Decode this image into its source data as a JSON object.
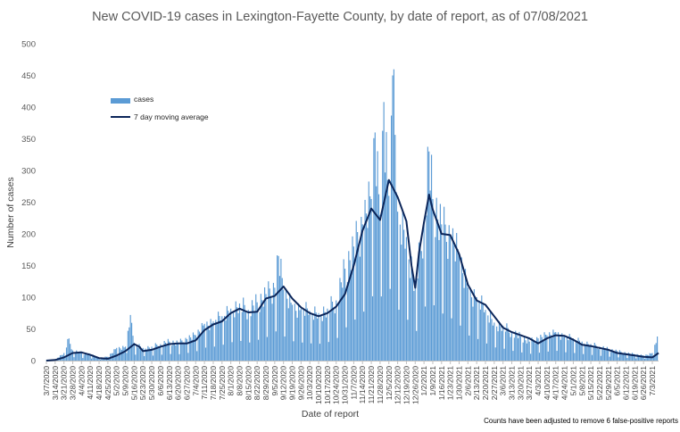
{
  "title": "New COVID-19 cases in Lexington-Fayette County, by date of report, as of 07/08/2021",
  "footnote": "Counts have been adjusted to remove 6 false-positive reports",
  "colors": {
    "bars": "#5B9BD5",
    "line": "#0B2559",
    "text": "#595959"
  },
  "chart_data": {
    "type": "bar",
    "title": "New COVID-19 cases in Lexington-Fayette County, by date of report, as of 07/08/2021",
    "xlabel": "Date of report",
    "ylabel": "Number of cases",
    "ylim": [
      0,
      500
    ],
    "yticks": [
      0,
      50,
      100,
      150,
      200,
      250,
      300,
      350,
      400,
      450,
      500
    ],
    "xlim": [
      "3/7/2020",
      "7/8/2021"
    ],
    "xticks": [
      "3/7/2020",
      "3/14/2020",
      "3/21/2020",
      "3/28/2020",
      "4/4/2020",
      "4/11/2020",
      "4/18/2020",
      "4/25/2020",
      "5/2/2020",
      "5/9/2020",
      "5/16/2020",
      "5/23/2020",
      "5/30/2020",
      "6/6/2020",
      "6/13/2020",
      "6/20/2020",
      "6/27/2020",
      "7/4/2020",
      "7/11/2020",
      "7/18/2020",
      "7/25/2020",
      "8/1/2020",
      "8/8/2020",
      "8/15/2020",
      "8/22/2020",
      "8/29/2020",
      "9/5/2020",
      "9/12/2020",
      "9/19/2020",
      "9/26/2020",
      "10/3/2020",
      "10/10/2020",
      "10/17/2020",
      "10/24/2020",
      "10/31/2020",
      "11/7/2020",
      "11/14/2020",
      "11/21/2020",
      "11/28/2020",
      "12/5/2020",
      "12/12/2020",
      "12/19/2020",
      "12/26/2020",
      "1/2/2021",
      "1/9/2021",
      "1/16/2021",
      "1/23/2021",
      "1/30/2021",
      "2/6/2021",
      "2/13/2021",
      "2/20/2021",
      "2/27/2021",
      "3/6/2021",
      "3/13/2021",
      "3/20/2021",
      "3/27/2021",
      "4/3/2021",
      "4/10/2021",
      "4/17/2021",
      "4/24/2021",
      "5/1/2021",
      "5/8/2021",
      "5/15/2021",
      "5/22/2021",
      "5/29/2021",
      "6/5/2021",
      "6/12/2021",
      "6/19/2021",
      "6/26/2021",
      "7/3/2021"
    ],
    "grid": false,
    "legend_position": "upper-left",
    "series": [
      {
        "name": "cases",
        "type": "bar",
        "color": "#5B9BD5",
        "points": [
          [
            "3/7/2020",
            1
          ],
          [
            "3/14/2020",
            2
          ],
          [
            "3/21/2020",
            12
          ],
          [
            "3/25/2020",
            35
          ],
          [
            "3/28/2020",
            16
          ],
          [
            "4/4/2020",
            12
          ],
          [
            "4/11/2020",
            10
          ],
          [
            "4/18/2020",
            4
          ],
          [
            "4/25/2020",
            6
          ],
          [
            "5/2/2020",
            20
          ],
          [
            "5/9/2020",
            22
          ],
          [
            "5/13/2020",
            72
          ],
          [
            "5/16/2020",
            28
          ],
          [
            "5/23/2020",
            20
          ],
          [
            "5/30/2020",
            22
          ],
          [
            "6/6/2020",
            26
          ],
          [
            "6/13/2020",
            30
          ],
          [
            "6/20/2020",
            28
          ],
          [
            "6/27/2020",
            34
          ],
          [
            "7/4/2020",
            40
          ],
          [
            "7/11/2020",
            58
          ],
          [
            "7/18/2020",
            62
          ],
          [
            "7/25/2020",
            70
          ],
          [
            "8/1/2020",
            82
          ],
          [
            "8/8/2020",
            90
          ],
          [
            "8/15/2020",
            80
          ],
          [
            "8/22/2020",
            92
          ],
          [
            "8/29/2020",
            105
          ],
          [
            "9/5/2020",
            115
          ],
          [
            "9/8/2020",
            165
          ],
          [
            "9/12/2020",
            112
          ],
          [
            "9/19/2020",
            88
          ],
          [
            "9/26/2020",
            82
          ],
          [
            "10/3/2020",
            78
          ],
          [
            "10/10/2020",
            75
          ],
          [
            "10/17/2020",
            82
          ],
          [
            "10/24/2020",
            95
          ],
          [
            "10/31/2020",
            145
          ],
          [
            "11/7/2020",
            180
          ],
          [
            "11/14/2020",
            215
          ],
          [
            "11/21/2020",
            255
          ],
          [
            "11/24/2020",
            360
          ],
          [
            "11/28/2020",
            230
          ],
          [
            "12/1/2020",
            408
          ],
          [
            "12/5/2020",
            260
          ],
          [
            "12/8/2020",
            450
          ],
          [
            "12/12/2020",
            235
          ],
          [
            "12/19/2020",
            195
          ],
          [
            "12/26/2020",
            120
          ],
          [
            "1/2/2021",
            215
          ],
          [
            "1/6/2021",
            330
          ],
          [
            "1/9/2021",
            255
          ],
          [
            "1/16/2021",
            215
          ],
          [
            "1/23/2021",
            195
          ],
          [
            "1/30/2021",
            165
          ],
          [
            "2/6/2021",
            115
          ],
          [
            "2/13/2021",
            100
          ],
          [
            "2/20/2021",
            80
          ],
          [
            "2/27/2021",
            60
          ],
          [
            "3/6/2021",
            55
          ],
          [
            "3/13/2021",
            45
          ],
          [
            "3/20/2021",
            38
          ],
          [
            "3/27/2021",
            30
          ],
          [
            "4/3/2021",
            35
          ],
          [
            "4/10/2021",
            40
          ],
          [
            "4/17/2021",
            45
          ],
          [
            "4/24/2021",
            38
          ],
          [
            "5/1/2021",
            35
          ],
          [
            "5/8/2021",
            30
          ],
          [
            "5/15/2021",
            26
          ],
          [
            "5/22/2021",
            22
          ],
          [
            "5/29/2021",
            18
          ],
          [
            "6/5/2021",
            15
          ],
          [
            "6/12/2021",
            12
          ],
          [
            "6/19/2021",
            10
          ],
          [
            "6/26/2021",
            8
          ],
          [
            "7/3/2021",
            12
          ],
          [
            "7/7/2021",
            38
          ]
        ]
      },
      {
        "name": "7 day moving average",
        "type": "line",
        "color": "#0B2559",
        "points": [
          [
            "3/7/2020",
            0
          ],
          [
            "3/14/2020",
            1
          ],
          [
            "3/21/2020",
            5
          ],
          [
            "3/28/2020",
            12
          ],
          [
            "4/4/2020",
            13
          ],
          [
            "4/11/2020",
            9
          ],
          [
            "4/18/2020",
            4
          ],
          [
            "4/25/2020",
            3
          ],
          [
            "5/2/2020",
            8
          ],
          [
            "5/9/2020",
            15
          ],
          [
            "5/16/2020",
            26
          ],
          [
            "5/20/2020",
            22
          ],
          [
            "5/23/2020",
            15
          ],
          [
            "5/30/2020",
            17
          ],
          [
            "6/6/2020",
            22
          ],
          [
            "6/13/2020",
            26
          ],
          [
            "6/20/2020",
            27
          ],
          [
            "6/27/2020",
            27
          ],
          [
            "7/4/2020",
            32
          ],
          [
            "7/11/2020",
            48
          ],
          [
            "7/18/2020",
            57
          ],
          [
            "7/25/2020",
            62
          ],
          [
            "8/1/2020",
            75
          ],
          [
            "8/8/2020",
            82
          ],
          [
            "8/15/2020",
            76
          ],
          [
            "8/22/2020",
            77
          ],
          [
            "8/29/2020",
            98
          ],
          [
            "9/5/2020",
            102
          ],
          [
            "9/12/2020",
            117
          ],
          [
            "9/19/2020",
            98
          ],
          [
            "9/26/2020",
            84
          ],
          [
            "10/3/2020",
            75
          ],
          [
            "10/10/2020",
            70
          ],
          [
            "10/17/2020",
            75
          ],
          [
            "10/24/2020",
            85
          ],
          [
            "10/31/2020",
            105
          ],
          [
            "11/7/2020",
            150
          ],
          [
            "11/14/2020",
            205
          ],
          [
            "11/21/2020",
            240
          ],
          [
            "11/28/2020",
            222
          ],
          [
            "12/5/2020",
            285
          ],
          [
            "12/12/2020",
            258
          ],
          [
            "12/19/2020",
            220
          ],
          [
            "12/23/2020",
            150
          ],
          [
            "12/26/2020",
            115
          ],
          [
            "12/29/2020",
            170
          ],
          [
            "1/2/2021",
            218
          ],
          [
            "1/6/2021",
            262
          ],
          [
            "1/9/2021",
            238
          ],
          [
            "1/16/2021",
            200
          ],
          [
            "1/23/2021",
            198
          ],
          [
            "1/30/2021",
            168
          ],
          [
            "2/6/2021",
            120
          ],
          [
            "2/13/2021",
            95
          ],
          [
            "2/20/2021",
            88
          ],
          [
            "2/27/2021",
            70
          ],
          [
            "3/6/2021",
            52
          ],
          [
            "3/13/2021",
            45
          ],
          [
            "3/20/2021",
            40
          ],
          [
            "3/27/2021",
            35
          ],
          [
            "4/3/2021",
            27
          ],
          [
            "4/10/2021",
            35
          ],
          [
            "4/17/2021",
            40
          ],
          [
            "4/24/2021",
            39
          ],
          [
            "5/1/2021",
            33
          ],
          [
            "5/8/2021",
            25
          ],
          [
            "5/15/2021",
            23
          ],
          [
            "5/22/2021",
            20
          ],
          [
            "5/29/2021",
            17
          ],
          [
            "6/5/2021",
            12
          ],
          [
            "6/12/2021",
            10
          ],
          [
            "6/19/2021",
            8
          ],
          [
            "6/26/2021",
            6
          ],
          [
            "7/3/2021",
            5
          ],
          [
            "7/8/2021",
            12
          ]
        ]
      }
    ]
  }
}
